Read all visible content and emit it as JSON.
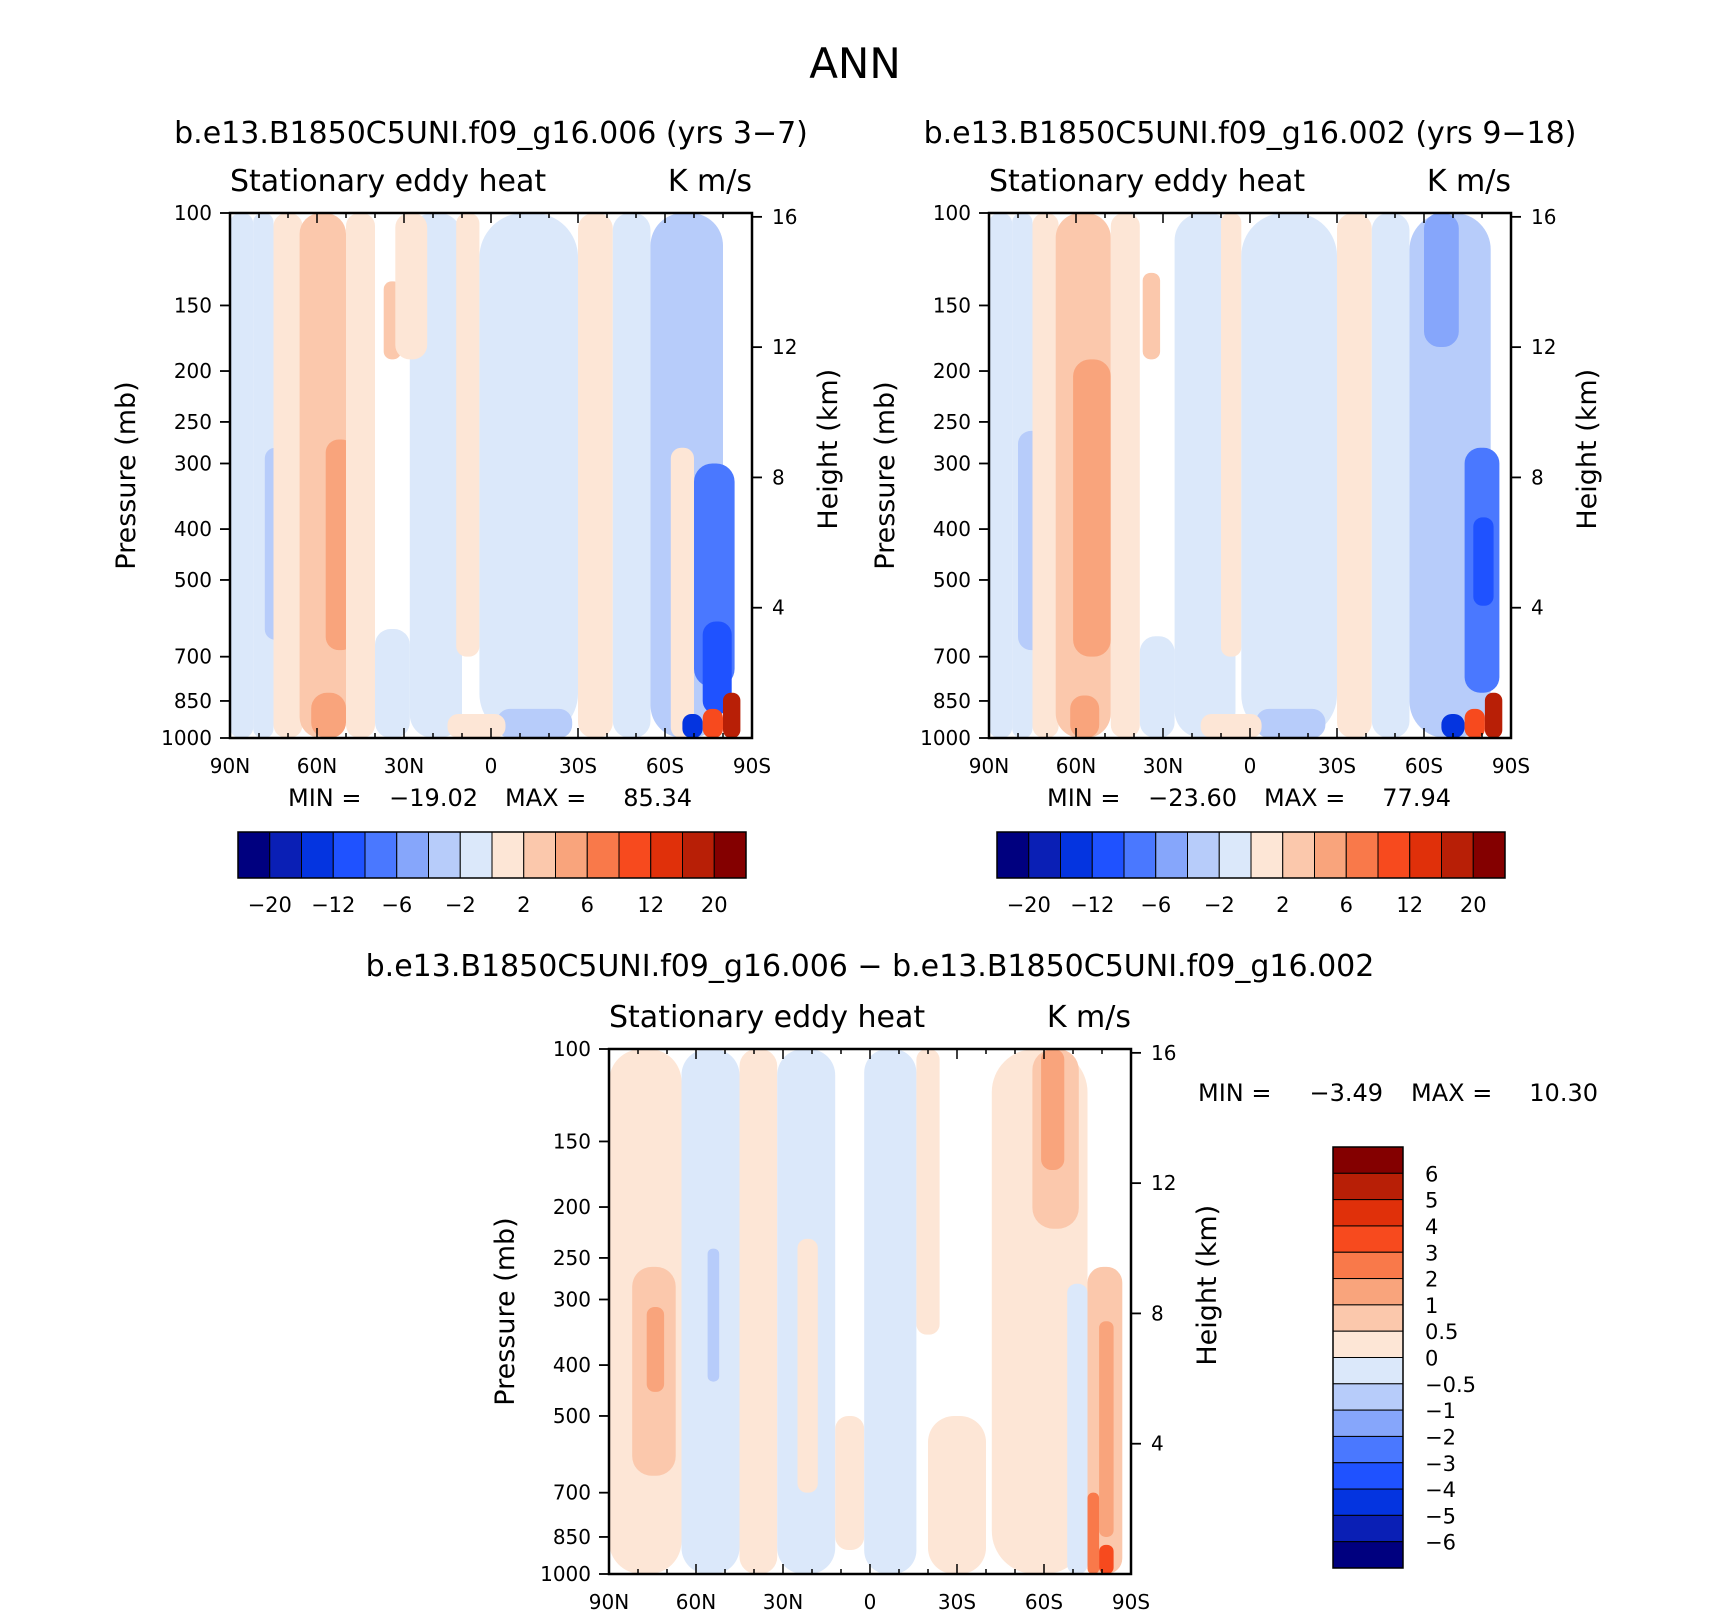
{
  "figure": {
    "title": "ANN"
  },
  "chart_data": [
    {
      "type": "contour",
      "title": "b.e13.B1850C5UNI.f09_g16.006 (yrs 3−7)",
      "left_label": "Stationary eddy heat",
      "right_label": "K m/s",
      "xlabel": "",
      "ylabel": "Pressure (mb)",
      "y2label": "Height (km)",
      "x_ticks": [
        "90N",
        "60N",
        "30N",
        "0",
        "30S",
        "60S",
        "90S"
      ],
      "xlim": [
        90,
        -90
      ],
      "y_ticks": [
        100,
        150,
        200,
        250,
        300,
        400,
        500,
        700,
        850,
        1000
      ],
      "ylim": [
        1000,
        100
      ],
      "y2_ticks": [
        4,
        8,
        12,
        16
      ],
      "stats": {
        "min_label": "MIN =",
        "min": "−19.02",
        "max_label": "MAX =",
        "max": "85.34"
      },
      "levels": [
        -20,
        -16,
        -12,
        -9,
        -6,
        -4,
        -2,
        0,
        2,
        4,
        6,
        9,
        12,
        16,
        20
      ],
      "colorbar_labels": [
        "−20",
        "−12",
        "−6",
        "−2",
        "2",
        "6",
        "12",
        "20"
      ],
      "regions": [
        {
          "lat": [
            90,
            82
          ],
          "p": [
            100,
            1000
          ],
          "v": -1
        },
        {
          "lat": [
            82,
            75
          ],
          "p": [
            100,
            1000
          ],
          "v": -1
        },
        {
          "lat": [
            78,
            70
          ],
          "p": [
            280,
            650
          ],
          "v": -3
        },
        {
          "lat": [
            75,
            65
          ],
          "p": [
            100,
            1000
          ],
          "v": 1
        },
        {
          "lat": [
            66,
            50
          ],
          "p": [
            100,
            1000
          ],
          "v": 3
        },
        {
          "lat": [
            57,
            47
          ],
          "p": [
            270,
            680
          ],
          "v": 5
        },
        {
          "lat": [
            62,
            50
          ],
          "p": [
            820,
            1000
          ],
          "v": 5
        },
        {
          "lat": [
            50,
            40
          ],
          "p": [
            100,
            1000
          ],
          "v": 1
        },
        {
          "lat": [
            37,
            31
          ],
          "p": [
            135,
            190
          ],
          "v": 3
        },
        {
          "lat": [
            40,
            28
          ],
          "p": [
            620,
            1000
          ],
          "v": -1
        },
        {
          "lat": [
            28,
            10
          ],
          "p": [
            100,
            1000
          ],
          "v": -1
        },
        {
          "lat": [
            33,
            22
          ],
          "p": [
            100,
            190
          ],
          "v": 1
        },
        {
          "lat": [
            12,
            4
          ],
          "p": [
            100,
            700
          ],
          "v": 1
        },
        {
          "lat": [
            4,
            -30
          ],
          "p": [
            100,
            1000
          ],
          "v": -1
        },
        {
          "lat": [
            -2,
            -28
          ],
          "p": [
            880,
            1000
          ],
          "v": -3
        },
        {
          "lat": [
            15,
            -5
          ],
          "p": [
            900,
            1000
          ],
          "v": 1
        },
        {
          "lat": [
            -30,
            -42
          ],
          "p": [
            100,
            1000
          ],
          "v": 1
        },
        {
          "lat": [
            -42,
            -55
          ],
          "p": [
            100,
            1000
          ],
          "v": -1
        },
        {
          "lat": [
            -55,
            -80
          ],
          "p": [
            100,
            1000
          ],
          "v": -3
        },
        {
          "lat": [
            -62,
            -70
          ],
          "p": [
            280,
            1000
          ],
          "v": 1
        },
        {
          "lat": [
            -70,
            -84
          ],
          "p": [
            300,
            800
          ],
          "v": -7
        },
        {
          "lat": [
            -73,
            -83
          ],
          "p": [
            600,
            900
          ],
          "v": -10
        },
        {
          "lat": [
            -66,
            -73
          ],
          "p": [
            900,
            1000
          ],
          "v": -14
        },
        {
          "lat": [
            -73,
            -80
          ],
          "p": [
            880,
            1000
          ],
          "v": 10
        },
        {
          "lat": [
            -80,
            -86
          ],
          "p": [
            820,
            1000
          ],
          "v": 18
        }
      ]
    },
    {
      "type": "contour",
      "title": "b.e13.B1850C5UNI.f09_g16.002 (yrs 9−18)",
      "left_label": "Stationary eddy heat",
      "right_label": "K m/s",
      "xlabel": "",
      "ylabel": "Pressure (mb)",
      "y2label": "Height (km)",
      "x_ticks": [
        "90N",
        "60N",
        "30N",
        "0",
        "30S",
        "60S",
        "90S"
      ],
      "xlim": [
        90,
        -90
      ],
      "y_ticks": [
        100,
        150,
        200,
        250,
        300,
        400,
        500,
        700,
        850,
        1000
      ],
      "ylim": [
        1000,
        100
      ],
      "y2_ticks": [
        4,
        8,
        12,
        16
      ],
      "stats": {
        "min_label": "MIN =",
        "min": "−23.60",
        "max_label": "MAX =",
        "max": "77.94"
      },
      "levels": [
        -20,
        -16,
        -12,
        -9,
        -6,
        -4,
        -2,
        0,
        2,
        4,
        6,
        9,
        12,
        16,
        20
      ],
      "colorbar_labels": [
        "−20",
        "−12",
        "−6",
        "−2",
        "2",
        "6",
        "12",
        "20"
      ],
      "regions": [
        {
          "lat": [
            90,
            82
          ],
          "p": [
            100,
            1000
          ],
          "v": -1
        },
        {
          "lat": [
            82,
            75
          ],
          "p": [
            100,
            1000
          ],
          "v": -1
        },
        {
          "lat": [
            80,
            70
          ],
          "p": [
            260,
            680
          ],
          "v": -3
        },
        {
          "lat": [
            75,
            66
          ],
          "p": [
            100,
            1000
          ],
          "v": 1
        },
        {
          "lat": [
            67,
            48
          ],
          "p": [
            100,
            1000
          ],
          "v": 3
        },
        {
          "lat": [
            61,
            48
          ],
          "p": [
            190,
            700
          ],
          "v": 5
        },
        {
          "lat": [
            62,
            52
          ],
          "p": [
            830,
            1000
          ],
          "v": 5
        },
        {
          "lat": [
            48,
            38
          ],
          "p": [
            100,
            1000
          ],
          "v": 1
        },
        {
          "lat": [
            37,
            31
          ],
          "p": [
            130,
            190
          ],
          "v": 3
        },
        {
          "lat": [
            38,
            26
          ],
          "p": [
            640,
            1000
          ],
          "v": -1
        },
        {
          "lat": [
            26,
            5
          ],
          "p": [
            100,
            1000
          ],
          "v": -1
        },
        {
          "lat": [
            10,
            3
          ],
          "p": [
            100,
            700
          ],
          "v": 1
        },
        {
          "lat": [
            3,
            -30
          ],
          "p": [
            100,
            1000
          ],
          "v": -1
        },
        {
          "lat": [
            -2,
            -26
          ],
          "p": [
            880,
            1000
          ],
          "v": -3
        },
        {
          "lat": [
            17,
            -4
          ],
          "p": [
            900,
            1000
          ],
          "v": 1
        },
        {
          "lat": [
            -30,
            -42
          ],
          "p": [
            100,
            1000
          ],
          "v": 1
        },
        {
          "lat": [
            -42,
            -55
          ],
          "p": [
            100,
            1000
          ],
          "v": -1
        },
        {
          "lat": [
            -55,
            -83
          ],
          "p": [
            100,
            1000
          ],
          "v": -3
        },
        {
          "lat": [
            -60,
            -72
          ],
          "p": [
            100,
            180
          ],
          "v": -5
        },
        {
          "lat": [
            -74,
            -86
          ],
          "p": [
            280,
            820
          ],
          "v": -7
        },
        {
          "lat": [
            -77,
            -84
          ],
          "p": [
            380,
            560
          ],
          "v": -12
        },
        {
          "lat": [
            -66,
            -74
          ],
          "p": [
            900,
            1000
          ],
          "v": -14
        },
        {
          "lat": [
            -74,
            -81
          ],
          "p": [
            880,
            1000
          ],
          "v": 10
        },
        {
          "lat": [
            -81,
            -87
          ],
          "p": [
            820,
            1000
          ],
          "v": 18
        }
      ]
    },
    {
      "type": "contour",
      "title": "b.e13.B1850C5UNI.f09_g16.006 − b.e13.B1850C5UNI.f09_g16.002",
      "left_label": "Stationary eddy heat",
      "right_label": "K m/s",
      "xlabel": "",
      "ylabel": "Pressure (mb)",
      "y2label": "Height (km)",
      "x_ticks": [
        "90N",
        "60N",
        "30N",
        "0",
        "30S",
        "60S",
        "90S"
      ],
      "xlim": [
        90,
        -90
      ],
      "y_ticks": [
        100,
        150,
        200,
        250,
        300,
        400,
        500,
        700,
        850,
        1000
      ],
      "ylim": [
        1000,
        100
      ],
      "y2_ticks": [
        4,
        8,
        12,
        16
      ],
      "stats": {
        "min_label": "MIN =",
        "min": "−3.49",
        "max_label": "MAX =",
        "max": "10.30"
      },
      "levels": [
        -6,
        -5,
        -4,
        -3,
        -2,
        -1,
        -0.5,
        0,
        0.5,
        1,
        2,
        3,
        4,
        5,
        6
      ],
      "colorbar_labels": [
        "6",
        "5",
        "4",
        "3",
        "2",
        "1",
        "0.5",
        "0",
        "−0.5",
        "−1",
        "−2",
        "−3",
        "−4",
        "−5",
        "−6"
      ],
      "regions": [
        {
          "lat": [
            90,
            65
          ],
          "p": [
            100,
            1000
          ],
          "v": 0.2
        },
        {
          "lat": [
            82,
            67
          ],
          "p": [
            260,
            650
          ],
          "v": 0.7
        },
        {
          "lat": [
            77,
            71
          ],
          "p": [
            310,
            450
          ],
          "v": 1.5
        },
        {
          "lat": [
            65,
            45
          ],
          "p": [
            100,
            1000
          ],
          "v": -0.2
        },
        {
          "lat": [
            56,
            52
          ],
          "p": [
            240,
            430
          ],
          "v": -0.7
        },
        {
          "lat": [
            45,
            32
          ],
          "p": [
            100,
            1000
          ],
          "v": 0.2
        },
        {
          "lat": [
            32,
            12
          ],
          "p": [
            100,
            1000
          ],
          "v": -0.2
        },
        {
          "lat": [
            25,
            18
          ],
          "p": [
            230,
            700
          ],
          "v": 0.2
        },
        {
          "lat": [
            12,
            2
          ],
          "p": [
            500,
            900
          ],
          "v": 0.2
        },
        {
          "lat": [
            2,
            -16
          ],
          "p": [
            100,
            1000
          ],
          "v": -0.2
        },
        {
          "lat": [
            -16,
            -24
          ],
          "p": [
            100,
            350
          ],
          "v": 0.2
        },
        {
          "lat": [
            -20,
            -40
          ],
          "p": [
            500,
            1000
          ],
          "v": 0.2
        },
        {
          "lat": [
            -42,
            -75
          ],
          "p": [
            100,
            1000
          ],
          "v": 0.2
        },
        {
          "lat": [
            -56,
            -72
          ],
          "p": [
            100,
            220
          ],
          "v": 0.7
        },
        {
          "lat": [
            -59,
            -67
          ],
          "p": [
            100,
            170
          ],
          "v": 1.5
        },
        {
          "lat": [
            -68,
            -75
          ],
          "p": [
            280,
            1000
          ],
          "v": -0.2
        },
        {
          "lat": [
            -75,
            -87
          ],
          "p": [
            260,
            1000
          ],
          "v": 0.7
        },
        {
          "lat": [
            -79,
            -84
          ],
          "p": [
            330,
            850
          ],
          "v": 1.5
        },
        {
          "lat": [
            -75,
            -79
          ],
          "p": [
            700,
            1000
          ],
          "v": 2.5
        },
        {
          "lat": [
            -79,
            -84
          ],
          "p": [
            880,
            1000
          ],
          "v": 3.5
        }
      ]
    }
  ]
}
